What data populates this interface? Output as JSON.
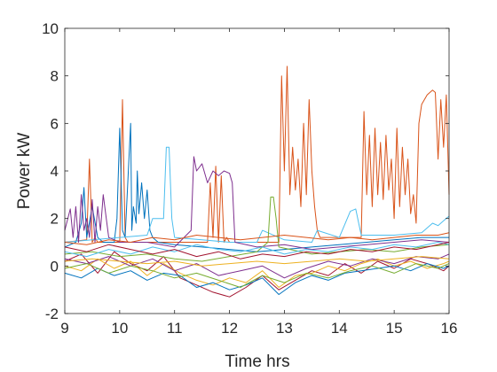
{
  "chart_data": {
    "type": "line",
    "title": "",
    "xlabel": "Time hrs",
    "ylabel": "Power kW",
    "xlim": [
      9,
      16
    ],
    "ylim": [
      -2,
      10
    ],
    "xticks": [
      "9",
      "10",
      "11",
      "12",
      "13",
      "14",
      "15",
      "16"
    ],
    "yticks": [
      "-2",
      "0",
      "2",
      "4",
      "6",
      "8",
      "10"
    ],
    "grid": false,
    "legend": "none",
    "colors": [
      "#0072BD",
      "#D95319",
      "#EDB120",
      "#7E2F8E",
      "#77AC30",
      "#4DBEEE",
      "#A2142F"
    ],
    "series": [
      {
        "color": "#D95319",
        "x": [
          9.0,
          9.4,
          9.45,
          9.5,
          9.55,
          9.6,
          10.0,
          10.05,
          10.1,
          10.15,
          10.2,
          11.6,
          11.65,
          11.7,
          11.75,
          11.8,
          11.85,
          11.9,
          11.95,
          12.0,
          12.05,
          12.9,
          12.95,
          13.0,
          13.05,
          13.1,
          13.15,
          13.2,
          13.25,
          13.3,
          13.35,
          13.4,
          13.45,
          13.5,
          13.55,
          13.6,
          13.65,
          14.4,
          14.45,
          14.5,
          14.55,
          14.6,
          14.65,
          14.7,
          14.75,
          14.8,
          14.85,
          14.9,
          14.95,
          15.0,
          15.05,
          15.1,
          15.15,
          15.2,
          15.25,
          15.3,
          15.35,
          15.4,
          15.45,
          15.5,
          15.55,
          15.6,
          15.65,
          15.7,
          15.75,
          15.8,
          15.85,
          15.9,
          15.95,
          16.0
        ],
        "y": [
          1.0,
          1.1,
          4.5,
          1.0,
          1.2,
          1.0,
          1.0,
          7.0,
          1.2,
          1.0,
          1.0,
          1.0,
          3.5,
          1.2,
          4.2,
          1.0,
          3.8,
          1.0,
          1.2,
          1.0,
          1.0,
          1.0,
          8.0,
          4.0,
          8.4,
          3.0,
          5.0,
          3.2,
          4.5,
          2.5,
          6.0,
          3.0,
          7.0,
          4.0,
          2.5,
          1.5,
          1.2,
          1.2,
          6.5,
          3.0,
          5.5,
          2.5,
          5.8,
          3.0,
          5.2,
          2.8,
          5.5,
          3.2,
          4.5,
          2.0,
          5.8,
          2.5,
          5.0,
          3.0,
          4.5,
          2.2,
          3.0,
          1.8,
          6.0,
          6.8,
          7.0,
          7.2,
          7.3,
          7.4,
          7.3,
          4.5,
          7.0,
          5.0,
          7.2,
          3.0
        ]
      },
      {
        "color": "#0072BD",
        "x": [
          9.0,
          9.2,
          9.3,
          9.35,
          9.4,
          9.5,
          9.6,
          9.7,
          9.9,
          9.95,
          10.0,
          10.05,
          10.1,
          10.2,
          10.22,
          10.25,
          10.3,
          10.32,
          10.35,
          10.4,
          10.45,
          10.5,
          10.55,
          10.6,
          10.7,
          11.0,
          11.5,
          12.0,
          12.5,
          13.0,
          13.5,
          14.0,
          14.5,
          15.0,
          15.5,
          16.0
        ],
        "y": [
          0.8,
          1.0,
          1.8,
          3.3,
          1.2,
          2.5,
          1.2,
          1.0,
          1.0,
          2.0,
          5.8,
          1.5,
          1.2,
          6.0,
          1.5,
          2.5,
          1.8,
          4.0,
          2.2,
          3.5,
          2.0,
          3.2,
          1.5,
          1.2,
          1.0,
          0.9,
          0.8,
          0.7,
          0.6,
          0.7,
          0.8,
          0.9,
          1.0,
          1.1,
          1.2,
          1.2
        ]
      },
      {
        "color": "#4DBEEE",
        "x": [
          9.0,
          9.5,
          10.0,
          10.5,
          10.6,
          10.8,
          10.85,
          10.9,
          10.95,
          11.0,
          11.5,
          12.0,
          12.5,
          12.6,
          13.0,
          13.5,
          13.6,
          14.0,
          14.2,
          14.3,
          14.4,
          15.0,
          15.5,
          15.7,
          15.8,
          15.9,
          16.0
        ],
        "y": [
          1.0,
          1.1,
          1.2,
          1.3,
          2.0,
          2.0,
          5.0,
          5.0,
          2.0,
          1.2,
          1.1,
          1.0,
          1.0,
          1.5,
          1.1,
          1.0,
          1.5,
          1.2,
          2.3,
          2.4,
          1.3,
          1.3,
          1.4,
          1.8,
          1.7,
          1.9,
          2.1
        ]
      },
      {
        "color": "#7E2F8E",
        "x": [
          9.0,
          9.1,
          9.15,
          9.2,
          9.25,
          9.3,
          9.35,
          9.4,
          9.45,
          9.5,
          9.55,
          9.6,
          9.65,
          9.7,
          9.8,
          10.0,
          10.5,
          11.0,
          11.3,
          11.35,
          11.4,
          11.5,
          11.6,
          11.7,
          11.8,
          11.9,
          12.0,
          12.05,
          12.1,
          12.5,
          13.0,
          13.5,
          14.0,
          14.5,
          15.0,
          15.5,
          16.0
        ],
        "y": [
          1.5,
          2.4,
          1.2,
          2.5,
          1.0,
          3.0,
          1.5,
          2.0,
          1.2,
          2.8,
          1.0,
          2.5,
          1.5,
          3.0,
          1.2,
          1.0,
          1.0,
          0.8,
          1.5,
          4.6,
          4.0,
          4.3,
          3.5,
          4.0,
          3.8,
          4.0,
          3.9,
          3.5,
          1.0,
          0.8,
          0.9,
          0.7,
          0.8,
          0.9,
          1.0,
          1.1,
          1.0
        ]
      },
      {
        "color": "#A2142F",
        "x": [
          9.0,
          9.3,
          9.6,
          9.9,
          10.2,
          10.5,
          10.8,
          11.1,
          11.4,
          11.7,
          12.0,
          12.3,
          12.6,
          12.9,
          13.2,
          13.5,
          13.8,
          14.1,
          14.4,
          14.7,
          15.0,
          15.3,
          15.6,
          15.9,
          16.0
        ],
        "y": [
          0.2,
          0.5,
          -0.3,
          0.6,
          0.1,
          -0.2,
          0.4,
          -0.5,
          -0.8,
          -1.1,
          -1.3,
          -0.9,
          -0.4,
          -1.0,
          -0.6,
          -0.2,
          -0.4,
          0.1,
          -0.3,
          0.2,
          -0.1,
          0.3,
          0.1,
          -0.2,
          0.0
        ]
      },
      {
        "color": "#EDB120",
        "x": [
          9.0,
          9.3,
          9.6,
          9.9,
          10.2,
          10.5,
          10.8,
          11.1,
          11.4,
          11.7,
          12.0,
          12.3,
          12.6,
          12.9,
          13.2,
          13.5,
          13.8,
          14.1,
          14.4,
          14.7,
          15.0,
          15.3,
          15.6,
          15.9,
          16.0
        ],
        "y": [
          0.0,
          -0.2,
          0.3,
          -0.1,
          0.2,
          -0.4,
          0.1,
          -0.3,
          -0.6,
          -0.8,
          -0.5,
          -0.7,
          -0.2,
          -0.9,
          -0.4,
          -0.3,
          0.0,
          -0.2,
          0.1,
          0.3,
          0.0,
          0.2,
          -0.1,
          0.1,
          0.2
        ]
      },
      {
        "color": "#77AC30",
        "x": [
          9.0,
          9.5,
          10.0,
          10.5,
          11.0,
          11.5,
          12.0,
          12.5,
          12.7,
          12.75,
          12.8,
          12.85,
          12.9,
          13.5,
          14.0,
          14.5,
          15.0,
          15.5,
          16.0
        ],
        "y": [
          0.5,
          0.6,
          0.4,
          0.5,
          0.3,
          0.2,
          0.4,
          0.6,
          1.0,
          2.9,
          2.9,
          2.0,
          0.8,
          0.5,
          0.6,
          0.7,
          0.6,
          0.8,
          0.9
        ]
      },
      {
        "color": "#0072BD",
        "x": [
          9.0,
          9.3,
          9.6,
          9.9,
          10.2,
          10.5,
          10.8,
          11.1,
          11.4,
          11.7,
          12.0,
          12.3,
          12.6,
          12.9,
          13.2,
          13.5,
          13.8,
          14.1,
          14.4,
          14.7,
          15.0,
          15.3,
          15.6,
          15.9,
          16.0
        ],
        "y": [
          -0.3,
          -0.5,
          -0.1,
          -0.4,
          -0.2,
          -0.6,
          -0.3,
          -0.4,
          -0.9,
          -0.7,
          -1.0,
          -0.8,
          -0.5,
          -1.2,
          -0.7,
          -0.4,
          -0.6,
          -0.3,
          -0.2,
          -0.1,
          0.0,
          -0.2,
          0.1,
          -0.1,
          0.0
        ]
      },
      {
        "color": "#D95319",
        "x": [
          9.0,
          9.4,
          9.8,
          10.2,
          10.6,
          11.0,
          11.4,
          11.8,
          12.2,
          12.6,
          13.0,
          13.4,
          13.8,
          14.2,
          14.6,
          15.0,
          15.4,
          15.8,
          16.0
        ],
        "y": [
          1.0,
          0.9,
          1.1,
          1.0,
          1.2,
          1.1,
          1.3,
          1.2,
          1.1,
          1.2,
          1.3,
          1.2,
          1.1,
          1.2,
          1.1,
          1.2,
          1.3,
          1.3,
          1.4
        ]
      },
      {
        "color": "#7E2F8E",
        "x": [
          9.0,
          9.4,
          9.8,
          10.2,
          10.6,
          11.0,
          11.4,
          11.8,
          12.2,
          12.6,
          13.0,
          13.4,
          13.8,
          14.2,
          14.6,
          15.0,
          15.4,
          15.8,
          16.0
        ],
        "y": [
          0.3,
          0.1,
          0.4,
          0.0,
          0.3,
          -0.2,
          0.1,
          -0.4,
          -0.2,
          0.0,
          -0.5,
          -0.1,
          0.2,
          0.0,
          0.3,
          0.1,
          0.4,
          0.3,
          0.5
        ]
      },
      {
        "color": "#4DBEEE",
        "x": [
          9.0,
          9.4,
          9.8,
          10.2,
          10.6,
          11.0,
          11.4,
          11.8,
          12.2,
          12.6,
          13.0,
          13.4,
          13.8,
          14.2,
          14.6,
          15.0,
          15.4,
          15.8,
          16.0
        ],
        "y": [
          0.6,
          0.4,
          0.7,
          0.5,
          0.8,
          0.6,
          0.9,
          0.7,
          0.6,
          0.8,
          0.5,
          0.7,
          0.6,
          0.8,
          0.7,
          0.9,
          0.8,
          1.0,
          0.9
        ]
      },
      {
        "color": "#77AC30",
        "x": [
          9.0,
          9.4,
          9.8,
          10.2,
          10.6,
          11.0,
          11.4,
          11.8,
          12.2,
          12.6,
          13.0,
          13.4,
          13.8,
          14.2,
          14.6,
          15.0,
          15.4,
          15.8,
          16.0
        ],
        "y": [
          -0.1,
          0.1,
          -0.3,
          0.0,
          -0.2,
          -0.5,
          -0.3,
          -0.6,
          -0.9,
          -0.4,
          -0.7,
          -0.3,
          -0.5,
          -0.2,
          0.0,
          -0.3,
          0.1,
          -0.1,
          0.1
        ]
      },
      {
        "color": "#A2142F",
        "x": [
          9.0,
          9.4,
          9.8,
          10.2,
          10.6,
          11.0,
          11.4,
          11.8,
          12.2,
          12.6,
          13.0,
          13.4,
          13.8,
          14.2,
          14.6,
          15.0,
          15.4,
          15.8,
          16.0
        ],
        "y": [
          0.8,
          0.6,
          0.9,
          0.7,
          0.5,
          0.7,
          0.4,
          0.6,
          0.3,
          0.5,
          0.4,
          0.6,
          0.5,
          0.7,
          0.6,
          0.8,
          0.7,
          0.9,
          1.0
        ]
      },
      {
        "color": "#EDB120",
        "x": [
          9.0,
          9.5,
          10.0,
          10.5,
          11.0,
          11.5,
          12.0,
          12.5,
          13.0,
          13.5,
          14.0,
          14.5,
          15.0,
          15.5,
          16.0
        ],
        "y": [
          0.2,
          0.3,
          0.2,
          0.1,
          0.2,
          0.0,
          0.1,
          0.2,
          0.1,
          0.2,
          0.3,
          0.2,
          0.3,
          0.4,
          0.3
        ]
      }
    ]
  }
}
